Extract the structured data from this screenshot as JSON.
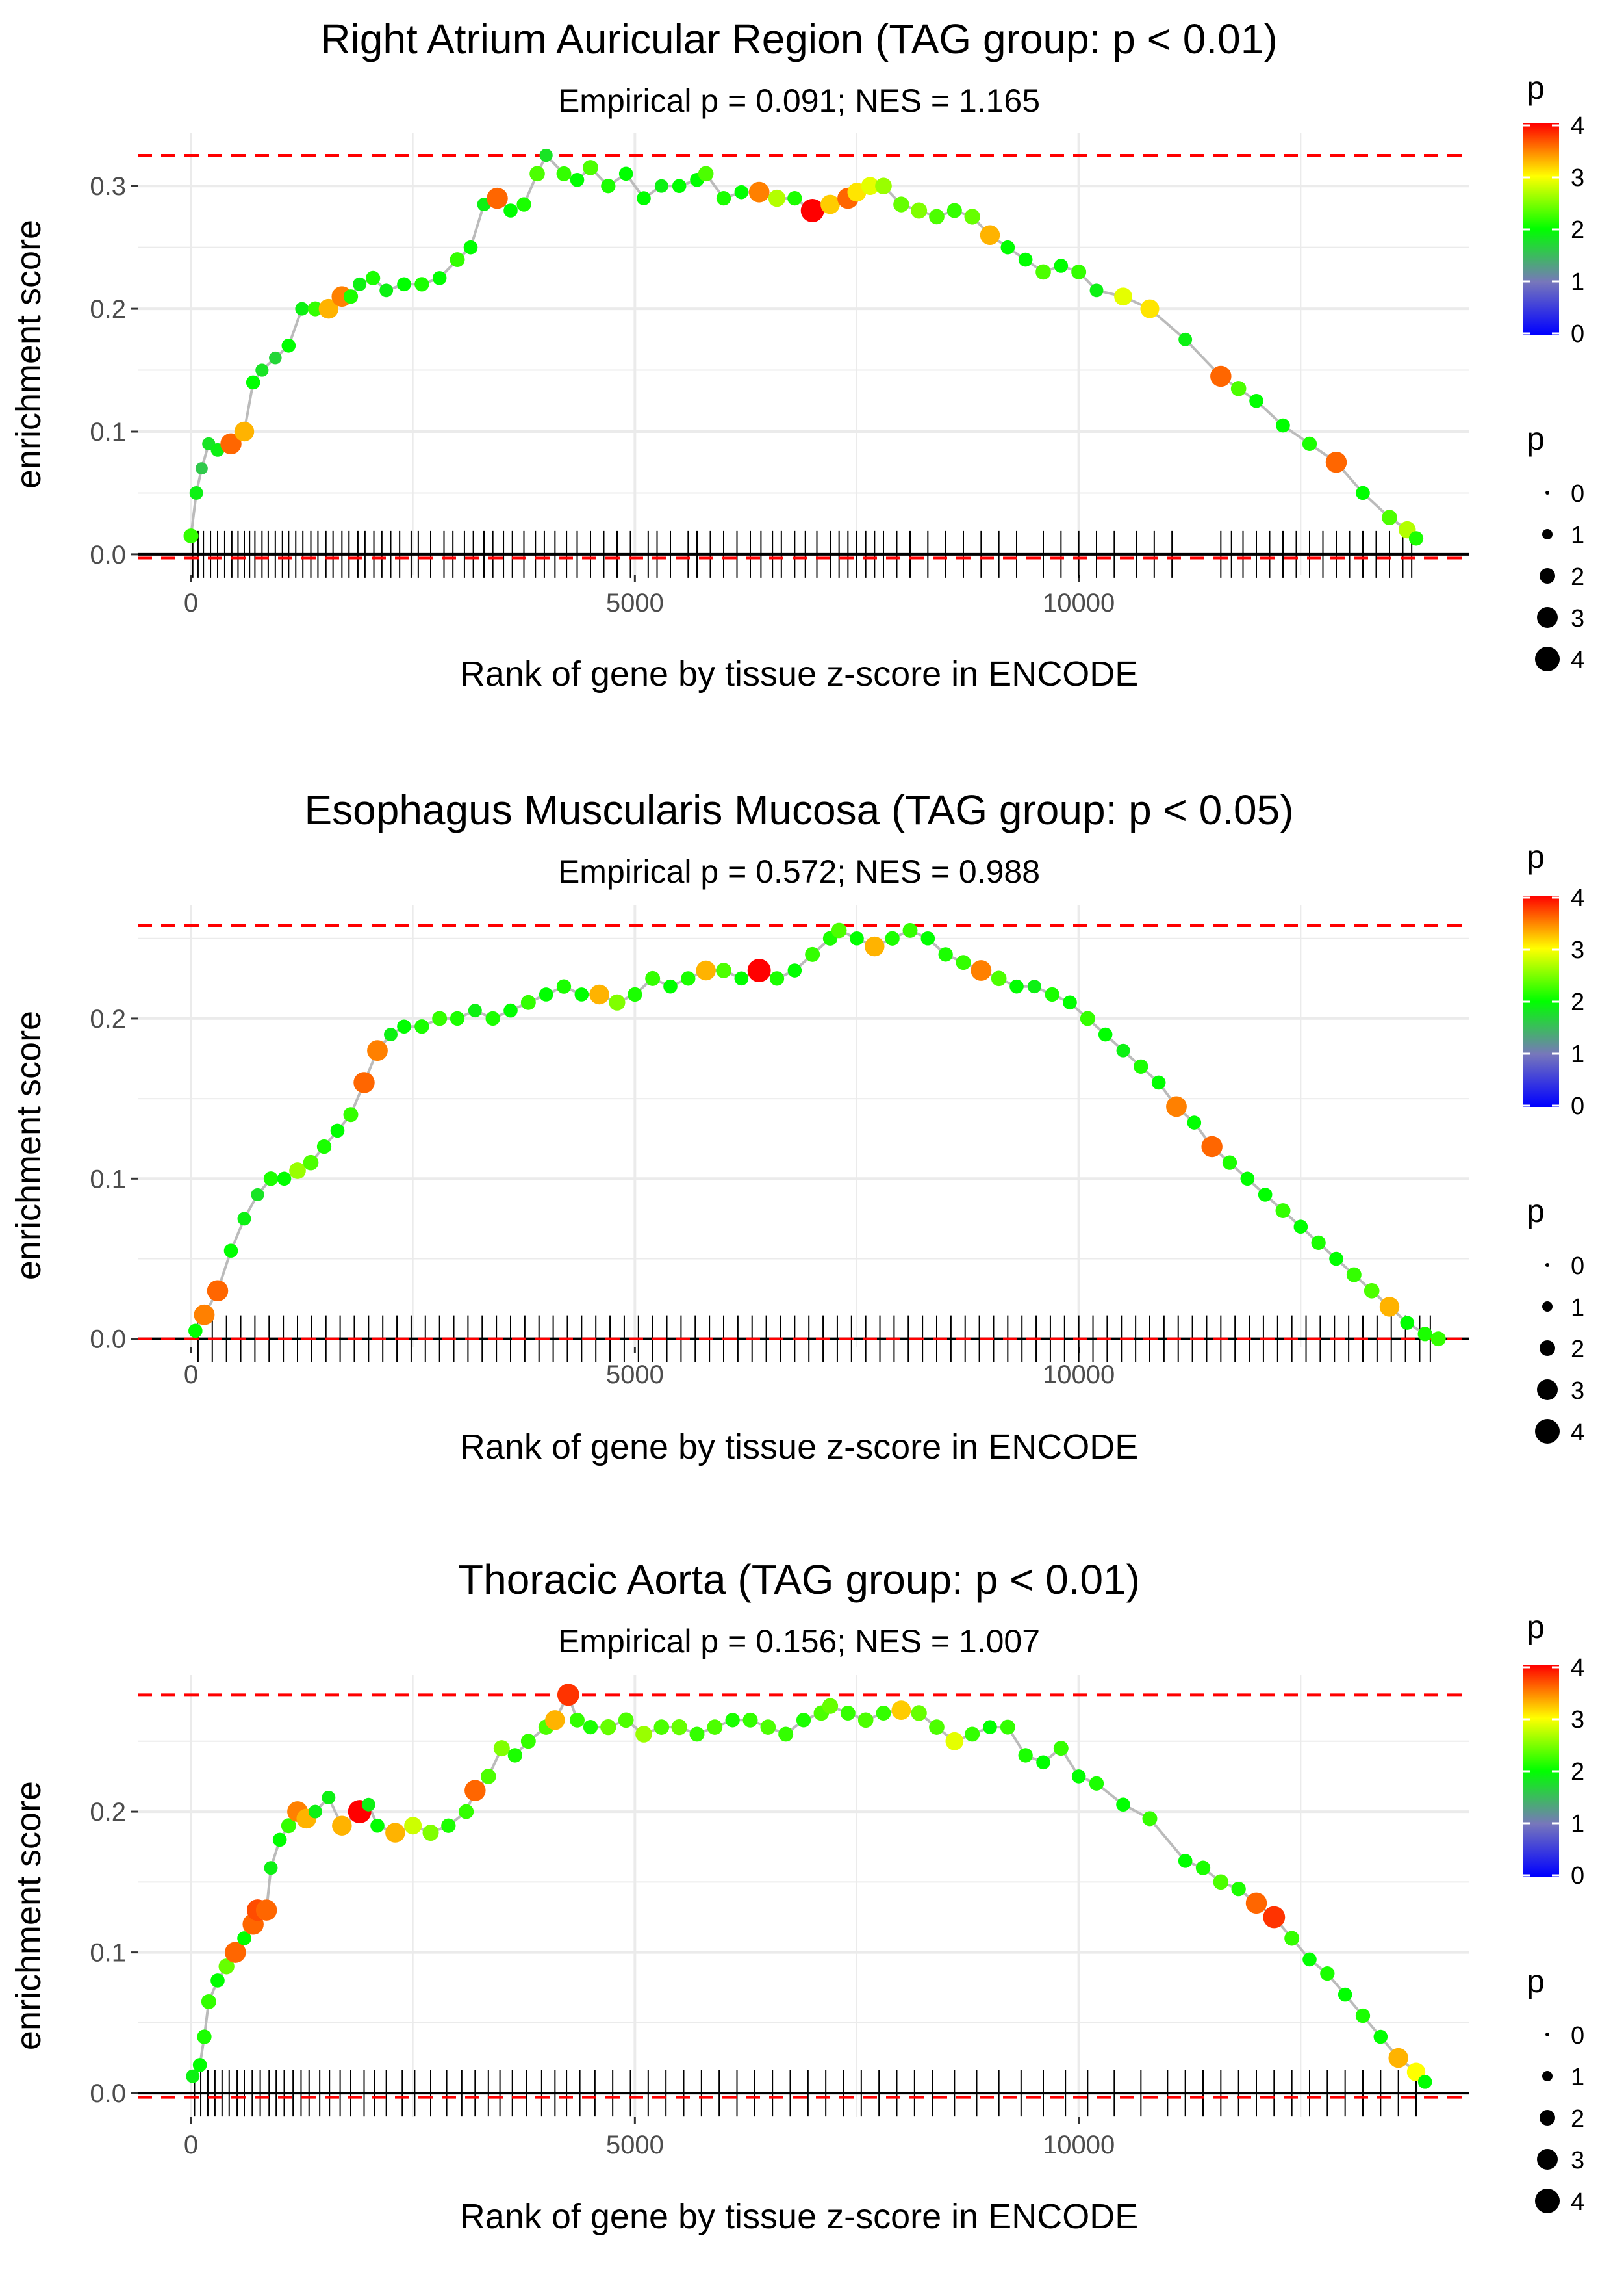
{
  "chart_data": [
    {
      "type": "line",
      "title": "Right Atrium Auricular Region (TAG group: p < 0.01)",
      "subtitle": "Empirical p = 0.091; NES = 1.165",
      "xlabel": "Rank of gene by tissue z-score in ENCODE",
      "ylabel": "enrichment score",
      "xlim": [
        -600,
        14400
      ],
      "ylim": [
        -0.017,
        0.343
      ],
      "x_ticks": [
        0,
        5000,
        10000
      ],
      "x_tick_labels": [
        "0",
        "5000",
        "10000"
      ],
      "y_ticks": [
        0.0,
        0.1,
        0.2,
        0.3
      ],
      "y_tick_labels": [
        "0.0",
        "0.1",
        "0.2",
        "0.3"
      ],
      "dashed_max": 0.325,
      "dashed_min": -0.003,
      "grid": true,
      "series": [
        {
          "name": "running enrichment score",
          "x": [
            0,
            60,
            120,
            200,
            300,
            450,
            600,
            700,
            800,
            950,
            1100,
            1250,
            1400,
            1550,
            1700,
            1800,
            1900,
            2050,
            2200,
            2400,
            2600,
            2800,
            3000,
            3150,
            3300,
            3450,
            3600,
            3750,
            3900,
            4000,
            4200,
            4350,
            4500,
            4700,
            4900,
            5100,
            5300,
            5500,
            5700,
            5800,
            6000,
            6200,
            6400,
            6600,
            6800,
            7000,
            7200,
            7400,
            7500,
            7650,
            7800,
            8000,
            8200,
            8400,
            8600,
            8800,
            9000,
            9200,
            9400,
            9600,
            9800,
            10000,
            10200,
            10500,
            10800,
            11200,
            11600,
            11800,
            12000,
            12300,
            12600,
            12900,
            13200,
            13500,
            13700,
            13800
          ],
          "y": [
            0.015,
            0.05,
            0.07,
            0.09,
            0.085,
            0.09,
            0.1,
            0.14,
            0.15,
            0.16,
            0.17,
            0.2,
            0.2,
            0.2,
            0.21,
            0.21,
            0.22,
            0.225,
            0.215,
            0.22,
            0.22,
            0.225,
            0.24,
            0.25,
            0.285,
            0.29,
            0.28,
            0.285,
            0.31,
            0.325,
            0.31,
            0.305,
            0.315,
            0.3,
            0.31,
            0.29,
            0.3,
            0.3,
            0.305,
            0.31,
            0.29,
            0.295,
            0.295,
            0.29,
            0.29,
            0.28,
            0.285,
            0.29,
            0.295,
            0.3,
            0.3,
            0.285,
            0.28,
            0.275,
            0.28,
            0.275,
            0.26,
            0.25,
            0.24,
            0.23,
            0.235,
            0.23,
            0.215,
            0.21,
            0.2,
            0.175,
            0.145,
            0.135,
            0.125,
            0.105,
            0.09,
            0.075,
            0.05,
            0.03,
            0.02,
            0.013
          ],
          "p": [
            2.2,
            1.9,
            1.6,
            1.8,
            1.9,
            3.6,
            3.3,
            2.0,
            1.8,
            1.7,
            2.0,
            1.9,
            2.2,
            3.3,
            3.5,
            2.1,
            1.9,
            2.1,
            1.9,
            2.0,
            2.1,
            2.0,
            2.2,
            2.0,
            1.9,
            3.6,
            2.0,
            2.1,
            2.3,
            1.8,
            2.2,
            2.0,
            2.3,
            2.1,
            2.0,
            2.0,
            1.9,
            2.0,
            2.0,
            2.3,
            2.1,
            2.0,
            3.5,
            2.7,
            2.1,
            4.1,
            3.2,
            3.6,
            3.1,
            2.9,
            2.6,
            2.4,
            2.5,
            2.3,
            2.2,
            2.4,
            3.3,
            2.0,
            2.0,
            2.3,
            2.0,
            2.2,
            1.9,
            2.9,
            3.1,
            1.9,
            3.6,
            2.3,
            2.0,
            2.0,
            2.1,
            3.6,
            2.0,
            2.3,
            2.7,
            2.1
          ]
        }
      ],
      "gene_ranks": [
        20,
        80,
        140,
        220,
        300,
        380,
        460,
        530,
        600,
        660,
        720,
        800,
        870,
        950,
        1030,
        1100,
        1180,
        1260,
        1350,
        1430,
        1520,
        1600,
        1700,
        1780,
        1880,
        1960,
        2060,
        2150,
        2250,
        2350,
        2480,
        2560,
        2700,
        2850,
        2950,
        3080,
        3180,
        3300,
        3400,
        3520,
        3620,
        3750,
        3880,
        3980,
        4100,
        4230,
        4350,
        4500,
        4650,
        4800,
        4950,
        5150,
        5250,
        5400,
        5600,
        5700,
        5850,
        6000,
        6150,
        6300,
        6420,
        6550,
        6650,
        6800,
        6920,
        7050,
        7200,
        7300,
        7400,
        7500,
        7600,
        7700,
        7800,
        7950,
        8100,
        8300,
        8500,
        8700,
        8900,
        9100,
        9300,
        9600,
        9800,
        10000,
        10200,
        10400,
        10650,
        10850,
        11050,
        11600,
        11720,
        11850,
        12000,
        12150,
        12300,
        12450,
        12600,
        12750,
        12900,
        13050,
        13200,
        13350,
        13500,
        13650,
        13750
      ]
    },
    {
      "type": "line",
      "title": "Esophagus Muscularis Mucosa (TAG group: p < 0.05)",
      "subtitle": "Empirical p = 0.572; NES = 0.988",
      "xlabel": "Rank of gene by tissue z-score in ENCODE",
      "ylabel": "enrichment score",
      "xlim": [
        -600,
        14400
      ],
      "ylim": [
        -0.005,
        0.271
      ],
      "x_ticks": [
        0,
        5000,
        10000
      ],
      "x_tick_labels": [
        "0",
        "5000",
        "10000"
      ],
      "y_ticks": [
        0.0,
        0.1,
        0.2
      ],
      "y_tick_labels": [
        "0.0",
        "0.1",
        "0.2"
      ],
      "dashed_max": 0.258,
      "dashed_min": 0.0,
      "grid": true,
      "series": [
        {
          "name": "running enrichment score",
          "x": [
            50,
            150,
            300,
            450,
            600,
            750,
            900,
            1050,
            1200,
            1350,
            1500,
            1650,
            1800,
            1950,
            2100,
            2250,
            2400,
            2600,
            2800,
            3000,
            3200,
            3400,
            3600,
            3800,
            4000,
            4200,
            4400,
            4600,
            4800,
            5000,
            5200,
            5400,
            5600,
            5800,
            6000,
            6200,
            6400,
            6600,
            6800,
            7000,
            7200,
            7300,
            7500,
            7700,
            7900,
            8100,
            8300,
            8500,
            8700,
            8900,
            9100,
            9300,
            9500,
            9700,
            9900,
            10100,
            10300,
            10500,
            10700,
            10900,
            11100,
            11300,
            11500,
            11700,
            11900,
            12100,
            12300,
            12500,
            12700,
            12900,
            13100,
            13300,
            13500,
            13700,
            13900,
            14050
          ],
          "y": [
            0.005,
            0.015,
            0.03,
            0.055,
            0.075,
            0.09,
            0.1,
            0.1,
            0.105,
            0.11,
            0.12,
            0.13,
            0.14,
            0.16,
            0.18,
            0.19,
            0.195,
            0.195,
            0.2,
            0.2,
            0.205,
            0.2,
            0.205,
            0.21,
            0.215,
            0.22,
            0.215,
            0.215,
            0.21,
            0.215,
            0.225,
            0.22,
            0.225,
            0.23,
            0.23,
            0.225,
            0.23,
            0.225,
            0.23,
            0.24,
            0.25,
            0.255,
            0.25,
            0.245,
            0.25,
            0.255,
            0.25,
            0.24,
            0.235,
            0.23,
            0.225,
            0.22,
            0.22,
            0.215,
            0.21,
            0.2,
            0.19,
            0.18,
            0.17,
            0.16,
            0.145,
            0.135,
            0.12,
            0.11,
            0.1,
            0.09,
            0.08,
            0.07,
            0.06,
            0.05,
            0.04,
            0.03,
            0.02,
            0.01,
            0.003,
            0.0
          ],
          "p": [
            2.0,
            3.5,
            3.6,
            2.0,
            1.9,
            1.8,
            2.1,
            2.0,
            2.6,
            2.3,
            2.1,
            2.0,
            2.2,
            3.6,
            3.5,
            1.9,
            2.0,
            2.1,
            2.2,
            2.1,
            1.9,
            2.1,
            2.0,
            2.2,
            2.0,
            2.1,
            2.0,
            3.3,
            2.5,
            2.1,
            2.2,
            2.0,
            2.1,
            3.3,
            2.3,
            2.0,
            4.1,
            2.1,
            2.0,
            2.2,
            2.1,
            2.3,
            2.0,
            3.3,
            2.1,
            2.2,
            2.0,
            2.1,
            2.2,
            3.5,
            2.3,
            2.0,
            1.9,
            2.1,
            2.0,
            2.2,
            2.0,
            1.9,
            2.1,
            2.0,
            3.5,
            2.0,
            3.6,
            2.1,
            2.0,
            2.0,
            2.2,
            2.0,
            2.1,
            2.0,
            2.2,
            2.3,
            3.3,
            2.0,
            2.1,
            2.2
          ]
        }
      ],
      "gene_ranks": [
        80,
        240,
        400,
        560,
        720,
        880,
        1040,
        1200,
        1360,
        1520,
        1680,
        1840,
        2000,
        2160,
        2320,
        2480,
        2640,
        2800,
        2960,
        3120,
        3280,
        3440,
        3600,
        3760,
        3920,
        4080,
        4240,
        4400,
        4560,
        4720,
        4880,
        5040,
        5200,
        5360,
        5520,
        5680,
        5840,
        6000,
        6160,
        6320,
        6480,
        6640,
        6800,
        6960,
        7120,
        7280,
        7440,
        7600,
        7760,
        7920,
        8080,
        8240,
        8400,
        8560,
        8720,
        8880,
        9040,
        9200,
        9360,
        9520,
        9680,
        9840,
        10000,
        10160,
        10320,
        10480,
        10640,
        10800,
        10960,
        11120,
        11280,
        11440,
        11600,
        11760,
        11920,
        12080,
        12240,
        12400,
        12560,
        12720,
        12880,
        13040,
        13200,
        13360,
        13520,
        13680,
        13840,
        13960
      ]
    },
    {
      "type": "line",
      "title": "Thoracic Aorta (TAG group: p < 0.01)",
      "subtitle": "Empirical p = 0.156; NES = 1.007",
      "xlabel": "Rank of gene by tissue z-score in ENCODE",
      "ylabel": "enrichment score",
      "xlim": [
        -600,
        14400
      ],
      "ylim": [
        -0.017,
        0.297
      ],
      "x_ticks": [
        0,
        5000,
        10000
      ],
      "x_tick_labels": [
        "0",
        "5000",
        "10000"
      ],
      "y_ticks": [
        0.0,
        0.1,
        0.2
      ],
      "y_tick_labels": [
        "0.0",
        "0.1",
        "0.2"
      ],
      "dashed_max": 0.283,
      "dashed_min": -0.003,
      "grid": true,
      "series": [
        {
          "name": "running enrichment score",
          "x": [
            20,
            100,
            150,
            200,
            300,
            400,
            500,
            600,
            700,
            750,
            850,
            900,
            1000,
            1100,
            1200,
            1300,
            1400,
            1550,
            1700,
            1900,
            2000,
            2100,
            2300,
            2500,
            2700,
            2900,
            3100,
            3200,
            3350,
            3500,
            3650,
            3800,
            4000,
            4100,
            4250,
            4350,
            4500,
            4700,
            4900,
            5100,
            5300,
            5500,
            5700,
            5900,
            6100,
            6300,
            6500,
            6700,
            6900,
            7100,
            7200,
            7400,
            7600,
            7800,
            8000,
            8200,
            8400,
            8600,
            8800,
            9000,
            9200,
            9400,
            9600,
            9800,
            10000,
            10200,
            10500,
            10800,
            11200,
            11400,
            11600,
            11800,
            12000,
            12200,
            12400,
            12600,
            12800,
            13000,
            13200,
            13400,
            13600,
            13800,
            13900
          ],
          "y": [
            0.012,
            0.02,
            0.04,
            0.065,
            0.08,
            0.09,
            0.1,
            0.11,
            0.12,
            0.13,
            0.13,
            0.16,
            0.18,
            0.19,
            0.2,
            0.195,
            0.2,
            0.21,
            0.19,
            0.2,
            0.205,
            0.19,
            0.185,
            0.19,
            0.185,
            0.19,
            0.2,
            0.215,
            0.225,
            0.245,
            0.24,
            0.25,
            0.26,
            0.265,
            0.283,
            0.265,
            0.26,
            0.26,
            0.265,
            0.255,
            0.26,
            0.26,
            0.255,
            0.26,
            0.265,
            0.265,
            0.26,
            0.255,
            0.265,
            0.27,
            0.275,
            0.27,
            0.265,
            0.27,
            0.272,
            0.27,
            0.26,
            0.25,
            0.255,
            0.26,
            0.26,
            0.24,
            0.235,
            0.245,
            0.225,
            0.22,
            0.205,
            0.195,
            0.165,
            0.16,
            0.15,
            0.145,
            0.135,
            0.125,
            0.11,
            0.095,
            0.085,
            0.07,
            0.055,
            0.04,
            0.025,
            0.015,
            0.008
          ],
          "p": [
            1.9,
            2.0,
            2.1,
            2.2,
            2.0,
            2.4,
            3.6,
            2.0,
            3.6,
            3.7,
            3.6,
            1.9,
            2.0,
            2.2,
            3.5,
            3.3,
            1.9,
            1.9,
            3.3,
            4.1,
            1.9,
            2.0,
            3.3,
            2.8,
            2.5,
            2.1,
            2.2,
            3.6,
            2.3,
            2.5,
            2.1,
            2.2,
            2.3,
            3.3,
            3.8,
            2.2,
            2.1,
            2.4,
            2.3,
            2.6,
            2.3,
            2.4,
            2.2,
            2.3,
            2.1,
            2.2,
            2.3,
            2.2,
            2.1,
            2.3,
            2.4,
            2.2,
            2.3,
            2.2,
            3.2,
            2.4,
            2.3,
            2.9,
            2.2,
            2.0,
            2.2,
            2.1,
            2.0,
            2.2,
            2.0,
            2.1,
            2.0,
            2.2,
            2.0,
            2.1,
            2.3,
            2.1,
            3.6,
            3.8,
            2.2,
            2.0,
            2.1,
            2.0,
            2.1,
            2.0,
            3.3,
            3.0,
            2.0
          ]
        }
      ],
      "gene_ranks": [
        40,
        110,
        190,
        270,
        350,
        430,
        520,
        600,
        690,
        780,
        880,
        960,
        1050,
        1150,
        1240,
        1330,
        1450,
        1560,
        1680,
        1800,
        1950,
        2070,
        2200,
        2380,
        2520,
        2700,
        2880,
        3050,
        3200,
        3350,
        3480,
        3620,
        3780,
        3950,
        4100,
        4230,
        4380,
        4550,
        4750,
        4950,
        5150,
        5350,
        5550,
        5750,
        5950,
        6150,
        6350,
        6550,
        6750,
        6950,
        7150,
        7350,
        7550,
        7750,
        7950,
        8150,
        8350,
        8600,
        8850,
        9100,
        9350,
        9600,
        9850,
        10100,
        10400,
        10700,
        11000,
        11200,
        11400,
        11600,
        11800,
        12000,
        12200,
        12400,
        12600,
        12800,
        13000,
        13200,
        13400,
        13600,
        13800
      ]
    }
  ],
  "legends": {
    "color_title": "p",
    "color_labels": [
      "0",
      "1",
      "2",
      "3",
      "4"
    ],
    "color_stops": [
      "#0000ff",
      "#7777bb",
      "#00ff00",
      "#ffff00",
      "#ff0000"
    ],
    "size_title": "p",
    "size_labels": [
      "0",
      "1",
      "2",
      "3",
      "4"
    ]
  },
  "colors": {
    "dashed_line": "#ff0000",
    "path_line": "#bbbbbb",
    "baseline": "#000000",
    "gridline": "#ebebeb",
    "rug": "#000000"
  }
}
